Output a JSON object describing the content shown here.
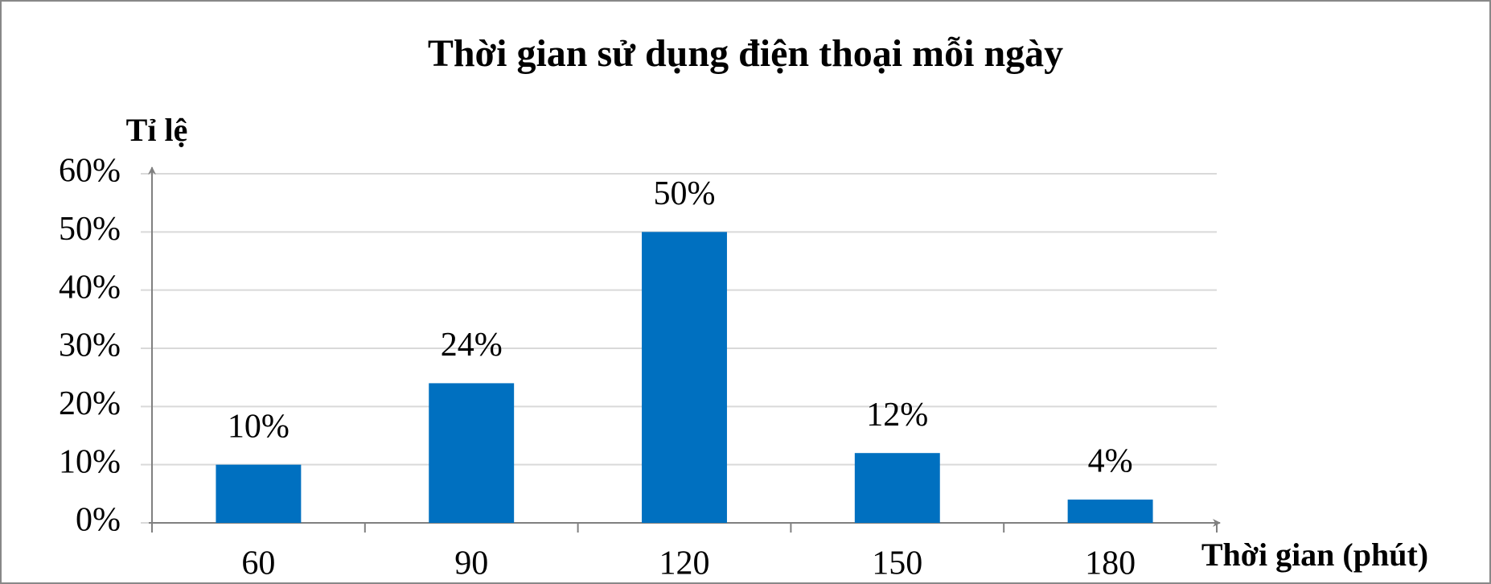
{
  "chart_data": {
    "type": "bar",
    "title": "Thời gian sử dụng điện thoại mỗi ngày",
    "y_label": "Tỉ lệ",
    "x_label": "Thời gian (phút)",
    "categories": [
      "60",
      "90",
      "120",
      "150",
      "180"
    ],
    "values": [
      10,
      24,
      50,
      12,
      4
    ],
    "value_labels": [
      "10%",
      "24%",
      "50%",
      "12%",
      "4%"
    ],
    "color": "#0070c0",
    "ylim": [
      0,
      60
    ],
    "yticks": [
      {
        "value": 0,
        "label": "0%"
      },
      {
        "value": 10,
        "label": "10%"
      },
      {
        "value": 20,
        "label": "20%"
      },
      {
        "value": 30,
        "label": "30%"
      },
      {
        "value": 40,
        "label": "40%"
      },
      {
        "value": 50,
        "label": "50%"
      },
      {
        "value": 60,
        "label": "60%"
      }
    ],
    "grid": true
  }
}
